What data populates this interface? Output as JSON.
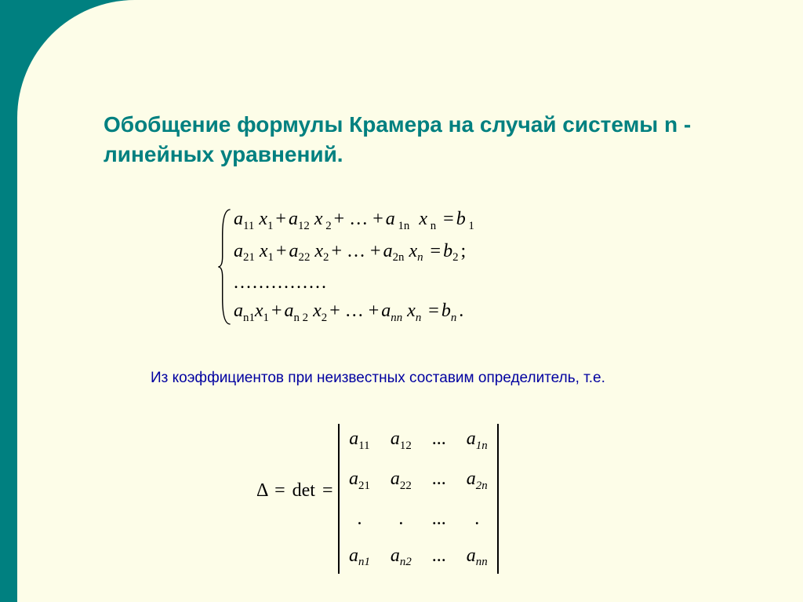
{
  "title": "Обобщение формулы Крамера на случай системы n - линейных уравнений.",
  "subtitle": "Из коэффициентов при неизвестных составим определитель, т.е.",
  "equations": {
    "row1": {
      "a1": "a",
      "s1a": "1",
      "s1b": "1",
      "x1": "x",
      "xs1": "1",
      "a2": "a",
      "s2a": "1",
      "s2b": "2",
      "x2": "x",
      "xs2": "2",
      "mid": "…",
      "an": "a",
      "sna": "1",
      "snb": "n",
      "xn": "x",
      "xsn": "n",
      "b": "b",
      "bs": "1",
      "tail": ""
    },
    "row2": {
      "a1": "a",
      "s1a": "2",
      "s1b": "1",
      "x1": "x",
      "xs1": "1",
      "a2": "a",
      "s2a": "2",
      "s2b": "2",
      "x2": "x",
      "xs2": "2",
      "mid": "…",
      "an": "a",
      "sna": "2",
      "snb": "n",
      "xn": "x",
      "xsn": "n",
      "b": "b",
      "bs": "2",
      "tail": ";"
    },
    "dots": "...............",
    "rown": {
      "a1": "a",
      "s1a": "n",
      "s1b": "1",
      "x1": "x",
      "xs1": "1",
      "a2": "a",
      "s2a": "n",
      "s2b": "2",
      "x2": "x",
      "xs2": "2",
      "mid": "…",
      "an": "a",
      "sna": "n",
      "snb": "n",
      "xn": "x",
      "xsn": "n",
      "b": "b",
      "bs": "n",
      "tail": "."
    }
  },
  "determinant": {
    "delta": "Δ",
    "eq1": "=",
    "det": "det",
    "eq2": "=",
    "matrix": [
      [
        {
          "sym": "a",
          "sub": "11"
        },
        {
          "sym": "a",
          "sub": "12"
        },
        {
          "dots": "..."
        },
        {
          "sym": "a",
          "sub": "1n",
          "it": true
        }
      ],
      [
        {
          "sym": "a",
          "sub": "21"
        },
        {
          "sym": "a",
          "sub": "22"
        },
        {
          "dots": "..."
        },
        {
          "sym": "a",
          "sub": "2n",
          "it": true
        }
      ],
      [
        {
          "dot": "."
        },
        {
          "dot": "."
        },
        {
          "dots": "..."
        },
        {
          "dot": "."
        }
      ],
      [
        {
          "sym": "a",
          "sub": "n1",
          "it": true
        },
        {
          "sym": "a",
          "sub": "n2",
          "it": true
        },
        {
          "dots": "..."
        },
        {
          "sym": "a",
          "sub": "nn",
          "it": true
        }
      ]
    ]
  },
  "colors": {
    "border": "#008080",
    "slide_bg": "#fdfde8",
    "title_color": "#008080",
    "subtitle_color": "#0000a0",
    "math_color": "#000000"
  }
}
